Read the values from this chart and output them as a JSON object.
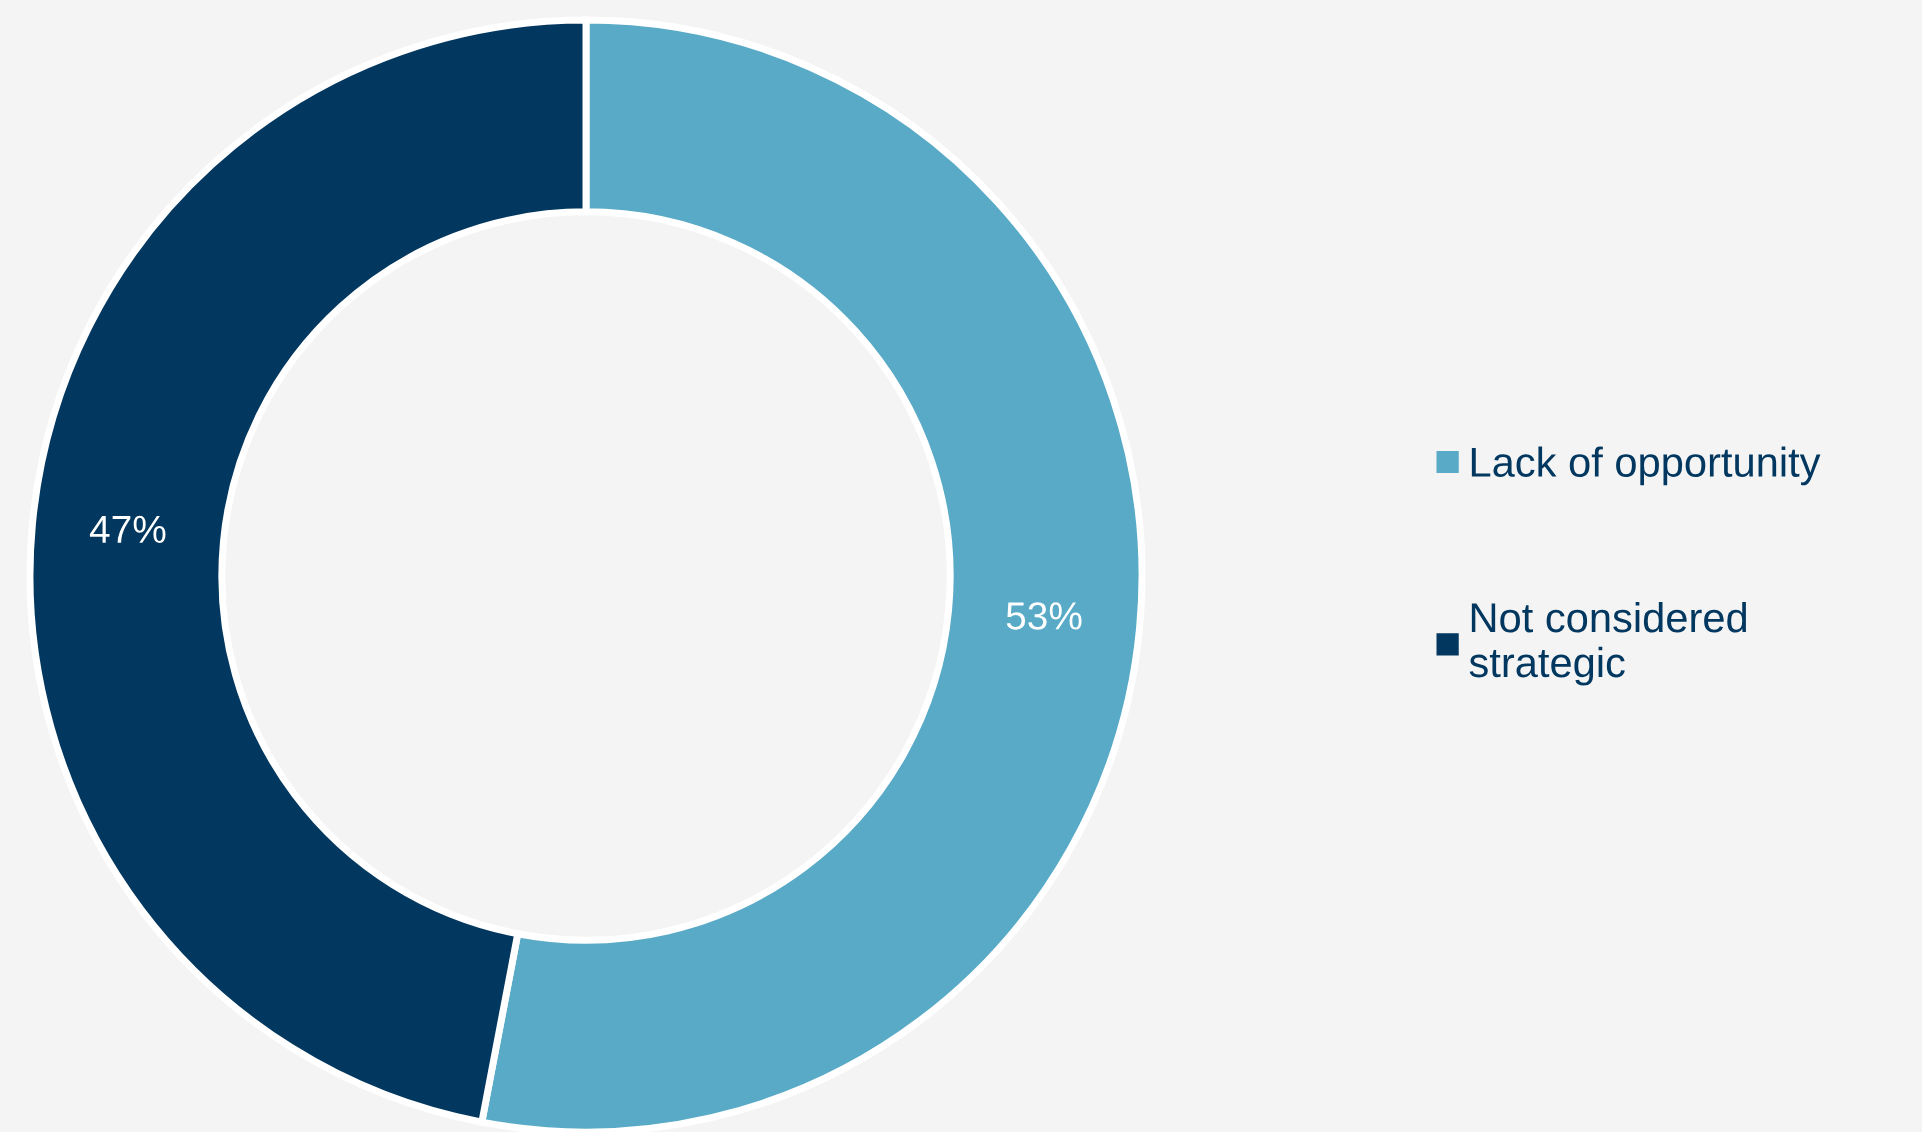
{
  "chart_data": {
    "type": "donut",
    "categories": [
      "Lack of opportunity",
      "Not considered strategic"
    ],
    "values": [
      53,
      47
    ],
    "colors": [
      "#58aac7",
      "#02375f"
    ],
    "value_labels": [
      "53%",
      "47%"
    ],
    "legend": "right"
  }
}
